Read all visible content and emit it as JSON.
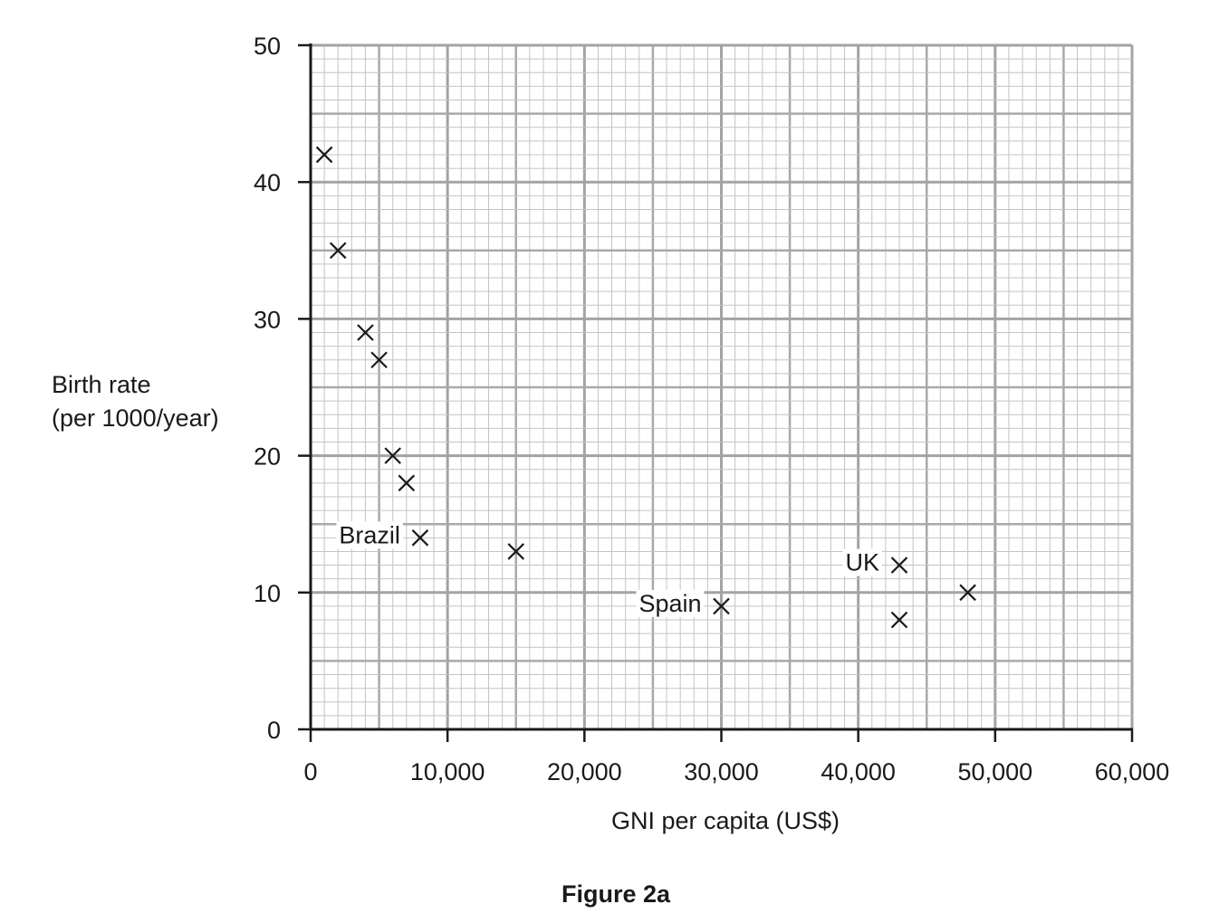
{
  "chart_data": {
    "type": "scatter",
    "title": "",
    "caption": "Figure 2a",
    "xlabel": "GNI per capita (US$)",
    "ylabel": [
      "Birth rate",
      "(per 1000/year)"
    ],
    "xlim": [
      0,
      60000
    ],
    "ylim": [
      0,
      50
    ],
    "x_ticks": [
      0,
      10000,
      20000,
      30000,
      40000,
      50000,
      60000
    ],
    "x_tick_labels": [
      "0",
      "10,000",
      "20,000",
      "30,000",
      "40,000",
      "50,000",
      "60,000"
    ],
    "y_ticks": [
      0,
      10,
      20,
      30,
      40,
      50
    ],
    "y_tick_labels": [
      "0",
      "10",
      "20",
      "30",
      "40",
      "50"
    ],
    "grid": true,
    "marker": "x",
    "points": [
      {
        "x": 1000,
        "y": 42,
        "label": ""
      },
      {
        "x": 2000,
        "y": 35,
        "label": ""
      },
      {
        "x": 4000,
        "y": 29,
        "label": ""
      },
      {
        "x": 5000,
        "y": 27,
        "label": ""
      },
      {
        "x": 6000,
        "y": 20,
        "label": ""
      },
      {
        "x": 7000,
        "y": 18,
        "label": ""
      },
      {
        "x": 8000,
        "y": 14,
        "label": "Brazil"
      },
      {
        "x": 15000,
        "y": 13,
        "label": ""
      },
      {
        "x": 30000,
        "y": 9,
        "label": "Spain"
      },
      {
        "x": 43000,
        "y": 12,
        "label": "UK"
      },
      {
        "x": 43000,
        "y": 8,
        "label": ""
      },
      {
        "x": 48000,
        "y": 10,
        "label": ""
      }
    ]
  }
}
